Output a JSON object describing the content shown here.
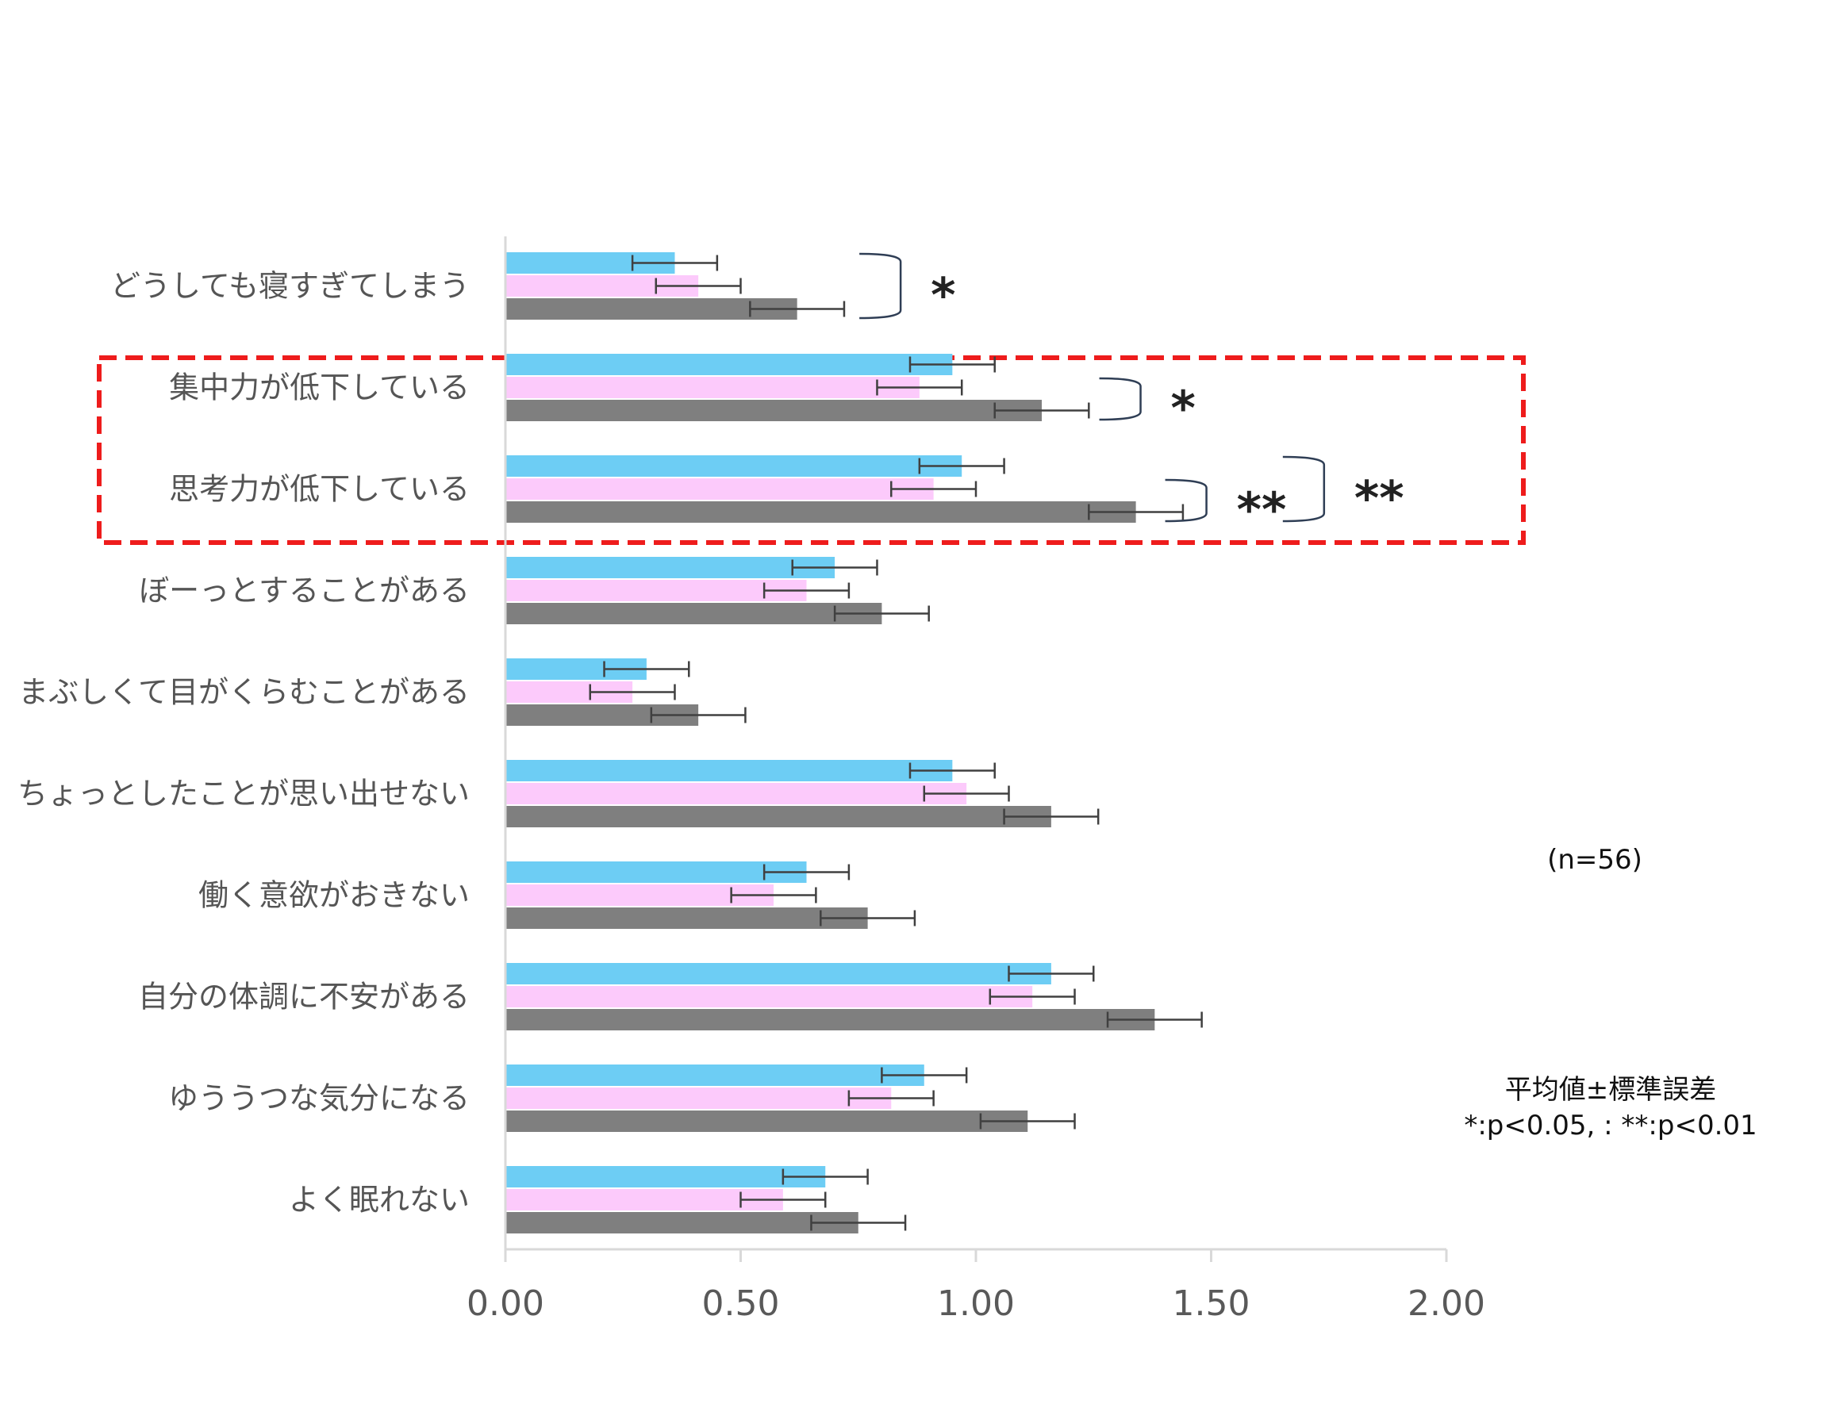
{
  "chart_data": {
    "type": "bar",
    "orientation": "horizontal",
    "categories": [
      "どうしても寝すぎてしまう",
      "集中力が低下している",
      "思考力が低下している",
      "ぼーっとすることがある",
      "まぶしくて目がくらむことがある",
      "ちょっとしたことが思い出せない",
      "働く意欲がおきない",
      "自分の体調に不安がある",
      "ゆううつな気分になる",
      "よく眠れない"
    ],
    "series": [
      {
        "color": "#6dcdf4",
        "values": [
          0.36,
          0.95,
          0.97,
          0.7,
          0.3,
          0.95,
          0.64,
          1.16,
          0.89,
          0.68
        ],
        "errors": [
          0.09,
          0.09,
          0.09,
          0.09,
          0.09,
          0.09,
          0.09,
          0.09,
          0.09,
          0.09
        ]
      },
      {
        "color": "#fccafb",
        "values": [
          0.41,
          0.88,
          0.91,
          0.64,
          0.27,
          0.98,
          0.57,
          1.12,
          0.82,
          0.59
        ],
        "errors": [
          0.09,
          0.09,
          0.09,
          0.09,
          0.09,
          0.09,
          0.09,
          0.09,
          0.09,
          0.09
        ]
      },
      {
        "color": "#7f7f7f",
        "values": [
          0.62,
          1.14,
          1.34,
          0.8,
          0.41,
          1.16,
          0.77,
          1.38,
          1.11,
          0.75
        ],
        "errors": [
          0.1,
          0.1,
          0.1,
          0.1,
          0.1,
          0.1,
          0.1,
          0.1,
          0.1,
          0.1
        ]
      }
    ],
    "xlim": [
      0,
      2.0
    ],
    "xticks": [
      "0.00",
      "0.50",
      "1.00",
      "1.50",
      "2.00"
    ],
    "significance": [
      {
        "category_index": 0,
        "from_series": 0,
        "to_series": 2,
        "value_x": 0.84,
        "mark": "*"
      },
      {
        "category_index": 1,
        "from_series": 1,
        "to_series": 2,
        "value_x": 1.35,
        "mark": "*"
      },
      {
        "category_index": 2,
        "from_series": 1,
        "to_series": 2,
        "value_x": 1.49,
        "mark": "**"
      },
      {
        "category_index": 2,
        "from_series": 0,
        "to_series": 2,
        "value_x": 1.74,
        "mark": "**"
      }
    ],
    "highlight": {
      "categories": [
        1,
        2
      ],
      "color": "#ee1c1c",
      "style": "dashed"
    },
    "annotations": {
      "n": "(n=56)",
      "stat_line1": "平均値±標準誤差",
      "stat_line2": "*:p<0.05, : **:p<0.01"
    },
    "grid": false,
    "axis_color": "#d9d9d9",
    "errorbar_color": "#404040"
  }
}
